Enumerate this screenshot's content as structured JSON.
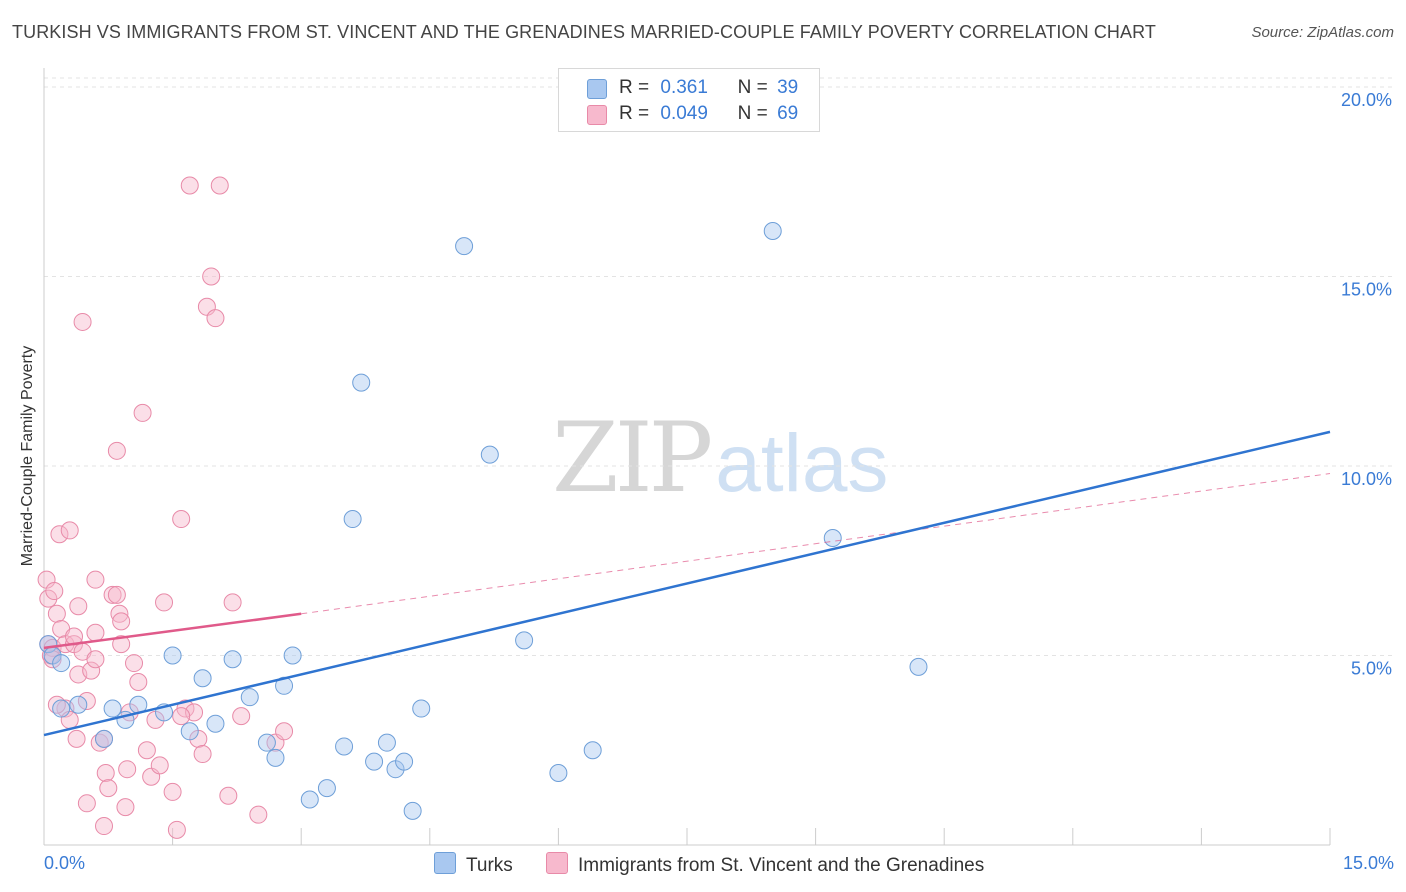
{
  "title": "TURKISH VS IMMIGRANTS FROM ST. VINCENT AND THE GRENADINES MARRIED-COUPLE FAMILY POVERTY CORRELATION CHART",
  "source": "Source: ZipAtlas.com",
  "watermark": {
    "zip": "ZIP",
    "atlas": "atlas"
  },
  "legend": {
    "r_label": "R =",
    "n_label": "N =",
    "rows": [
      {
        "r": "0.361",
        "n": "39",
        "color": "#a9c8f0"
      },
      {
        "r": "0.049",
        "n": "69",
        "color": "#f7b9cd"
      }
    ]
  },
  "chart_data": {
    "type": "scatter",
    "title": "TURKISH VS IMMIGRANTS FROM ST. VINCENT AND THE GRENADINES MARRIED-COUPLE FAMILY POVERTY CORRELATION CHART",
    "xlabel": "",
    "ylabel": "Married-Couple Family Poverty",
    "xlim": [
      0,
      15
    ],
    "ylim": [
      0,
      20.5
    ],
    "x_tick_labels": [
      "0.0%",
      "15.0%"
    ],
    "y_ticks": [
      5,
      10,
      15,
      20
    ],
    "y_tick_labels": [
      "5.0%",
      "10.0%",
      "15.0%",
      "20.0%"
    ],
    "grid": true,
    "legend_position": "top-center",
    "series": [
      {
        "name": "Turks",
        "color": "#a9c8f0",
        "stroke": "#6e9fd8",
        "trend": {
          "x": [
            0,
            15
          ],
          "y": [
            2.9,
            10.9
          ],
          "color": "#2f74d0",
          "style": "solid"
        },
        "points": [
          [
            0.05,
            5.3
          ],
          [
            0.1,
            5.0
          ],
          [
            0.2,
            4.8
          ],
          [
            0.2,
            3.6
          ],
          [
            0.4,
            3.7
          ],
          [
            0.7,
            2.8
          ],
          [
            0.8,
            3.6
          ],
          [
            0.95,
            3.3
          ],
          [
            1.1,
            3.7
          ],
          [
            1.5,
            5.0
          ],
          [
            1.7,
            3.0
          ],
          [
            1.85,
            4.4
          ],
          [
            2.0,
            3.2
          ],
          [
            2.2,
            4.9
          ],
          [
            2.4,
            3.9
          ],
          [
            2.6,
            2.7
          ],
          [
            2.7,
            2.3
          ],
          [
            2.8,
            4.2
          ],
          [
            2.9,
            5.0
          ],
          [
            3.1,
            1.2
          ],
          [
            3.3,
            1.5
          ],
          [
            3.5,
            2.6
          ],
          [
            3.6,
            8.6
          ],
          [
            3.85,
            2.2
          ],
          [
            4.0,
            2.7
          ],
          [
            4.1,
            2.0
          ],
          [
            4.2,
            2.2
          ],
          [
            4.3,
            0.9
          ],
          [
            4.4,
            3.6
          ],
          [
            4.9,
            15.8
          ],
          [
            5.2,
            10.3
          ],
          [
            5.6,
            5.4
          ],
          [
            6.0,
            1.9
          ],
          [
            6.4,
            2.5
          ],
          [
            8.5,
            16.2
          ],
          [
            9.2,
            8.1
          ],
          [
            10.2,
            4.7
          ],
          [
            3.7,
            12.2
          ],
          [
            1.4,
            3.5
          ]
        ]
      },
      {
        "name": "Immigrants from St. Vincent and the Grenadines",
        "color": "#f7b9cd",
        "stroke": "#e88aa8",
        "trend": {
          "x": [
            0,
            3
          ],
          "y": [
            5.2,
            6.1
          ],
          "color": "#e05a8a",
          "style": "solid",
          "ext_x": [
            3,
            15
          ],
          "ext_y": [
            6.1,
            9.8
          ],
          "ext_style": "dashed"
        },
        "points": [
          [
            0.03,
            7.0
          ],
          [
            0.05,
            6.5
          ],
          [
            0.05,
            5.3
          ],
          [
            0.08,
            5.0
          ],
          [
            0.1,
            5.2
          ],
          [
            0.1,
            4.9
          ],
          [
            0.12,
            6.7
          ],
          [
            0.15,
            6.1
          ],
          [
            0.18,
            8.2
          ],
          [
            0.2,
            5.7
          ],
          [
            0.25,
            3.6
          ],
          [
            0.25,
            5.3
          ],
          [
            0.3,
            3.3
          ],
          [
            0.3,
            8.3
          ],
          [
            0.35,
            5.3
          ],
          [
            0.35,
            5.5
          ],
          [
            0.38,
            2.8
          ],
          [
            0.4,
            4.5
          ],
          [
            0.4,
            6.3
          ],
          [
            0.45,
            5.1
          ],
          [
            0.45,
            13.8
          ],
          [
            0.5,
            3.8
          ],
          [
            0.5,
            1.1
          ],
          [
            0.55,
            4.6
          ],
          [
            0.6,
            4.9
          ],
          [
            0.6,
            7.0
          ],
          [
            0.65,
            2.7
          ],
          [
            0.7,
            0.5
          ],
          [
            0.7,
            2.8
          ],
          [
            0.72,
            1.9
          ],
          [
            0.75,
            1.5
          ],
          [
            0.8,
            6.6
          ],
          [
            0.85,
            10.4
          ],
          [
            0.85,
            6.6
          ],
          [
            0.88,
            6.1
          ],
          [
            0.9,
            5.9
          ],
          [
            0.95,
            1.0
          ],
          [
            0.97,
            2.0
          ],
          [
            1.0,
            3.5
          ],
          [
            1.05,
            4.8
          ],
          [
            1.1,
            4.3
          ],
          [
            1.15,
            11.4
          ],
          [
            1.2,
            2.5
          ],
          [
            1.25,
            1.8
          ],
          [
            1.3,
            3.3
          ],
          [
            1.35,
            2.1
          ],
          [
            1.4,
            6.4
          ],
          [
            1.5,
            1.4
          ],
          [
            1.55,
            0.4
          ],
          [
            1.6,
            8.6
          ],
          [
            1.65,
            3.6
          ],
          [
            1.7,
            17.4
          ],
          [
            1.75,
            3.5
          ],
          [
            1.8,
            2.8
          ],
          [
            1.85,
            2.4
          ],
          [
            1.9,
            14.2
          ],
          [
            1.95,
            15.0
          ],
          [
            2.0,
            13.9
          ],
          [
            2.05,
            17.4
          ],
          [
            2.15,
            1.3
          ],
          [
            2.2,
            6.4
          ],
          [
            2.3,
            3.4
          ],
          [
            2.5,
            0.8
          ],
          [
            2.7,
            2.7
          ],
          [
            2.8,
            3.0
          ],
          [
            0.6,
            5.6
          ],
          [
            0.9,
            5.3
          ],
          [
            1.6,
            3.4
          ],
          [
            0.15,
            3.7
          ]
        ]
      }
    ]
  },
  "bottom_legend": [
    "Turks",
    "Immigrants from St. Vincent and the Grenadines"
  ]
}
